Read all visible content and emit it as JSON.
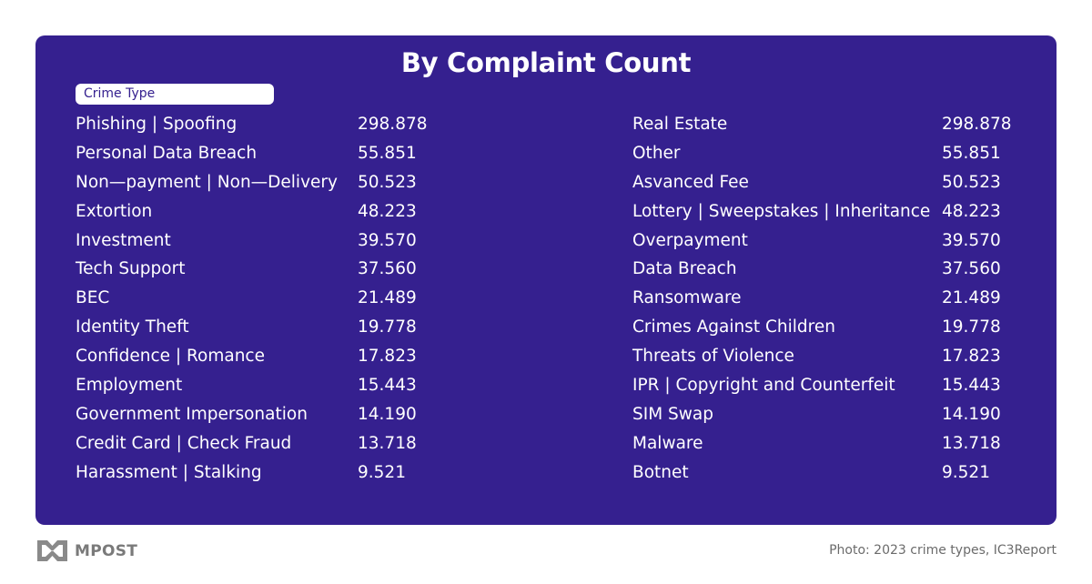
{
  "title": "By Complaint Count",
  "header_label": "Crime Type",
  "left_rows": [
    {
      "name": "Phishing | Spoofing",
      "value": "298.878"
    },
    {
      "name": "Personal Data Breach",
      "value": "55.851"
    },
    {
      "name": "Non—payment | Non—Delivery",
      "value": "50.523"
    },
    {
      "name": "Extortion",
      "value": "48.223"
    },
    {
      "name": "Investment",
      "value": "39.570"
    },
    {
      "name": "Tech Support",
      "value": "37.560"
    },
    {
      "name": "BEC",
      "value": "21.489"
    },
    {
      "name": "Identity Theft",
      "value": "19.778"
    },
    {
      "name": "Confidence | Romance",
      "value": "17.823"
    },
    {
      "name": "Employment",
      "value": "15.443"
    },
    {
      "name": "Government Impersonation",
      "value": "14.190"
    },
    {
      "name": "Credit Card | Check Fraud",
      "value": "13.718"
    },
    {
      "name": "Harassment | Stalking",
      "value": "9.521"
    }
  ],
  "right_rows": [
    {
      "name": "Real Estate",
      "value": "298.878"
    },
    {
      "name": "Other",
      "value": "55.851"
    },
    {
      "name": "Asvanced Fee",
      "value": "50.523"
    },
    {
      "name": "Lottery | Sweepstakes | Inheritance",
      "value": "48.223"
    },
    {
      "name": "Overpayment",
      "value": "39.570"
    },
    {
      "name": "Data Breach",
      "value": "37.560"
    },
    {
      "name": "Ransomware",
      "value": "21.489"
    },
    {
      "name": "Crimes Against Children",
      "value": "19.778"
    },
    {
      "name": "Threats of Violence",
      "value": "17.823"
    },
    {
      "name": "IPR | Copyright and Counterfeit",
      "value": "15.443"
    },
    {
      "name": "SIM Swap",
      "value": "14.190"
    },
    {
      "name": "Malware",
      "value": "13.718"
    },
    {
      "name": "Botnet",
      "value": "9.521"
    }
  ],
  "footer": {
    "brand": "MPOST",
    "credit": "Photo: 2023 crime types, IC3Report"
  },
  "colors": {
    "panel_bg": "#35208f",
    "text": "#ffffff",
    "footer_text": "#7a7a7a"
  }
}
